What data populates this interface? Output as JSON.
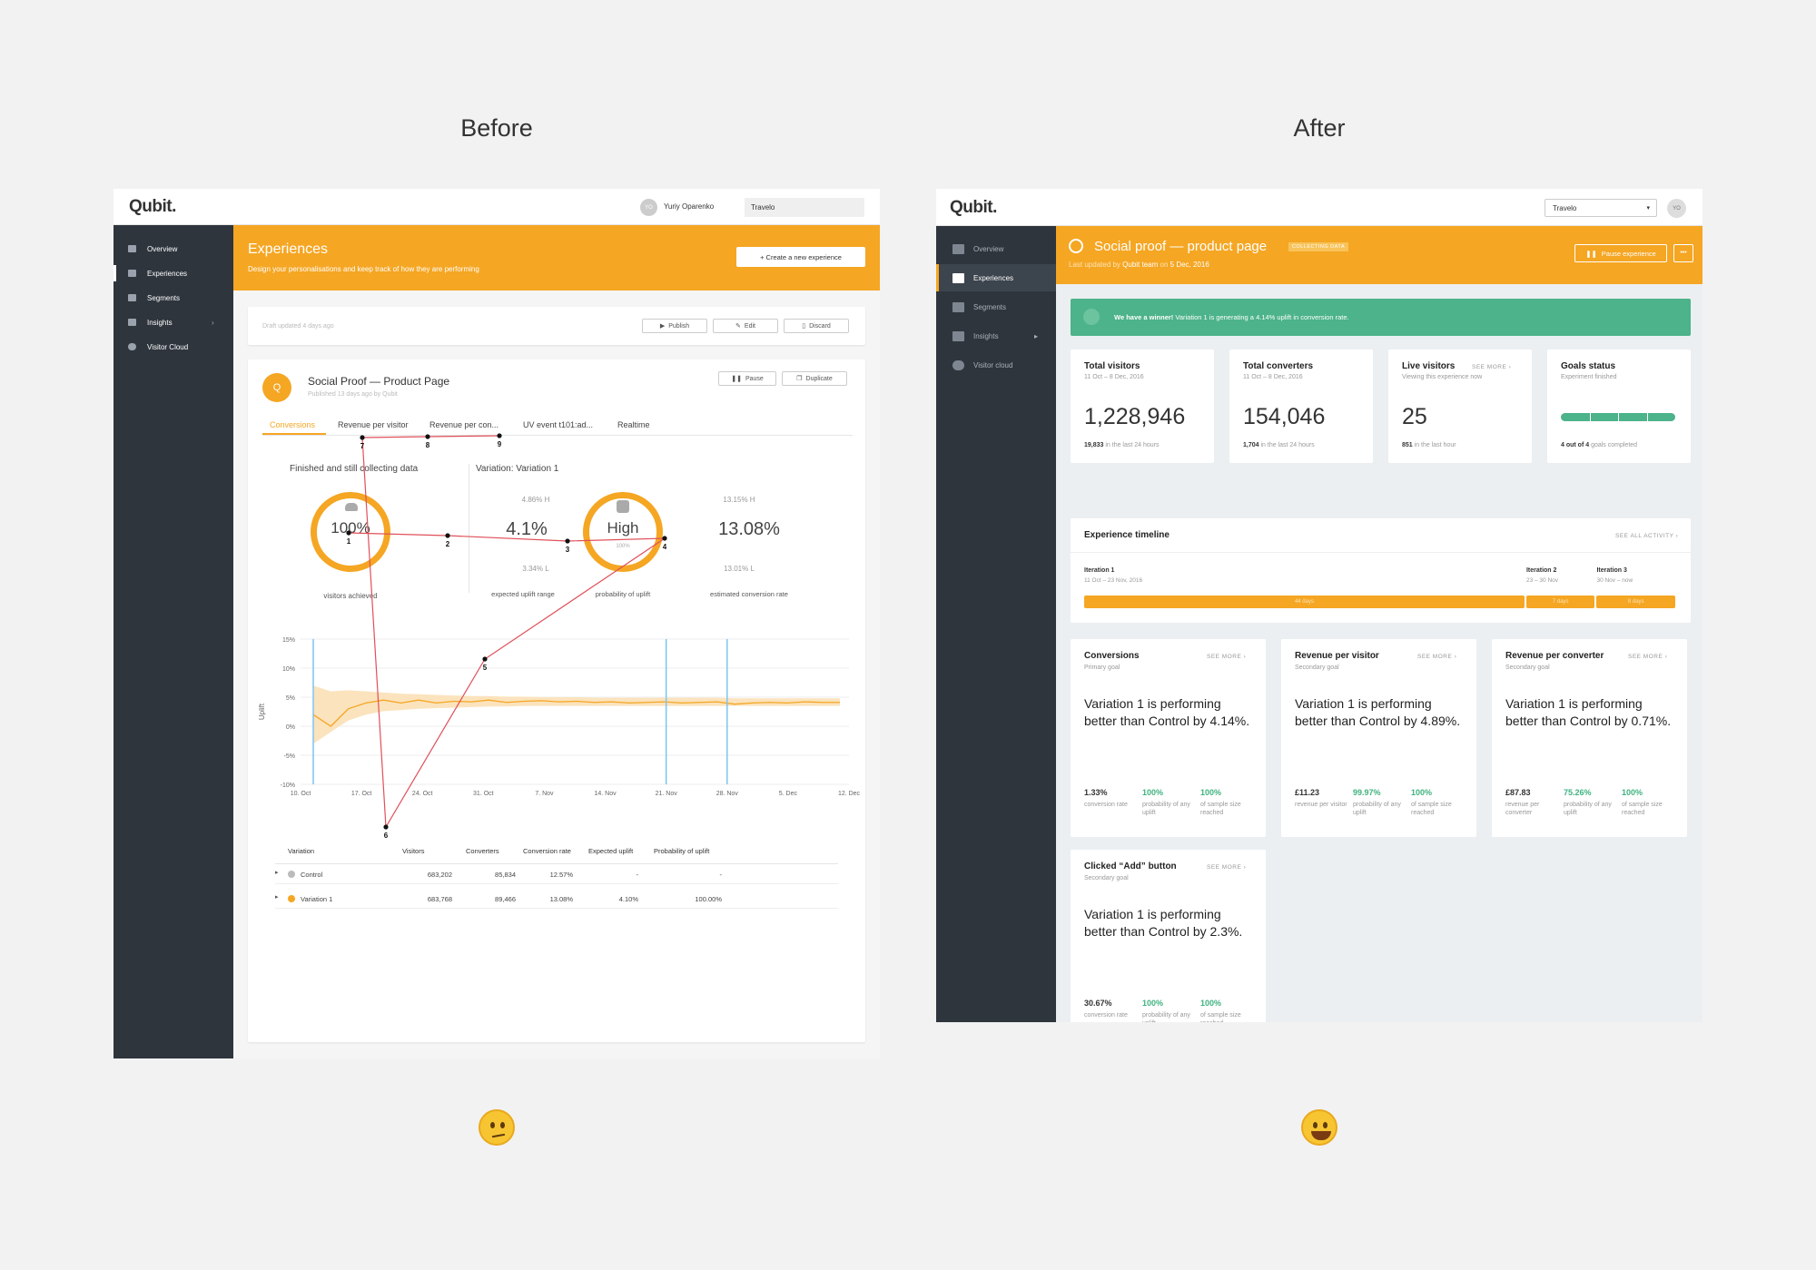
{
  "labels": {
    "before": "Before",
    "after": "After"
  },
  "before": {
    "logo": "Qubit.",
    "user_initials": "YO",
    "user_name": "Yuriy Oparenko",
    "account": "Travelo",
    "nav": [
      "Overview",
      "Experiences",
      "Segments",
      "Insights",
      "Visitor Cloud"
    ],
    "header_title": "Experiences",
    "header_subtitle": "Design your personalisations and keep track of how they are performing",
    "create_button": "+ Create a new experience",
    "draft_text": "Draft updated 4 days ago",
    "draft_buttons": [
      "Publish",
      "Edit",
      "Discard"
    ],
    "exp_icon": "Q",
    "exp_title": "Social Proof — Product Page",
    "exp_sub": "Published 13 days ago by Qubit",
    "exp_buttons": [
      "Pause",
      "Duplicate"
    ],
    "tabs": [
      "Conversions",
      "Revenue per visitor",
      "Revenue per con...",
      "UV event t101:ad...",
      "Realtime"
    ],
    "status_left": "Finished and still collecting data",
    "status_right": "Variation: Variation 1",
    "stats": {
      "visitors_value": "100%",
      "visitors_label": "visitors achieved",
      "uplift_value": "4.1%",
      "uplift_high": "4.86% H",
      "uplift_low": "3.34% L",
      "uplift_label": "expected uplift range",
      "prob_value": "High",
      "prob_sub": "100%",
      "prob_label": "probability of uplift",
      "conv_value": "13.08%",
      "conv_high": "13.15% H",
      "conv_low": "13.01% L",
      "conv_label": "estimated conversion rate"
    },
    "gaze_points": [
      "1",
      "2",
      "3",
      "4",
      "5",
      "6",
      "7",
      "8",
      "9"
    ],
    "table_headers": [
      "Variation",
      "Visitors",
      "Converters",
      "Conversion rate",
      "Expected uplift",
      "Probability of uplift"
    ],
    "table_rows": [
      {
        "name": "Control",
        "visitors": "683,202",
        "converters": "85,834",
        "rate": "12.57%",
        "uplift": "-",
        "prob": "-",
        "color": "#bbbbbb"
      },
      {
        "name": "Variation 1",
        "visitors": "683,768",
        "converters": "89,466",
        "rate": "13.08%",
        "uplift": "4.10%",
        "prob": "100.00%",
        "color": "#f5a623"
      }
    ]
  },
  "chart_data": {
    "type": "area",
    "ylabel": "Uplift",
    "y_ticks": [
      "15%",
      "10%",
      "5%",
      "0%",
      "-5%",
      "-10%"
    ],
    "x_ticks": [
      "10. Oct",
      "17. Oct",
      "24. Oct",
      "31. Oct",
      "7. Nov",
      "14. Nov",
      "21. Nov",
      "28. Nov",
      "5. Dec",
      "12. Dec"
    ],
    "ylim": [
      -10,
      15
    ],
    "series": [
      {
        "values": [
          2,
          0,
          3,
          4,
          4.5,
          4,
          4.5,
          4,
          4.3,
          4.2,
          4.5,
          4.1,
          4.3,
          4.4,
          4.2,
          4.3,
          4.1,
          4.2,
          4,
          4.1,
          4.2,
          4,
          4.1,
          4.2,
          3.8,
          4,
          4.1,
          4,
          4.2,
          4.1,
          4.1
        ]
      }
    ],
    "band_upper": [
      7,
      6,
      6.2,
      6,
      5.8,
      5.6,
      5.5,
      5.4,
      5.3,
      5.2,
      5.2,
      5.1,
      5.1,
      5,
      5,
      5,
      4.9,
      4.9,
      4.9,
      4.9,
      4.9,
      4.9,
      4.9,
      4.9,
      4.8,
      4.8,
      4.8,
      4.8,
      4.8,
      4.8,
      4.8
    ],
    "band_lower": [
      -3,
      -1,
      1,
      2,
      2.6,
      2.8,
      3,
      3.1,
      3.2,
      3.3,
      3.4,
      3.4,
      3.5,
      3.5,
      3.5,
      3.5,
      3.5,
      3.5,
      3.5,
      3.5,
      3.5,
      3.5,
      3.5,
      3.5,
      3.5,
      3.5,
      3.5,
      3.5,
      3.5,
      3.5,
      3.5
    ],
    "markers": [
      "10. Oct",
      "21. Nov",
      "28. Nov"
    ]
  },
  "after": {
    "logo": "Qubit.",
    "account": "Travelo",
    "user_initials": "YO",
    "nav": [
      "Overview",
      "Experiences",
      "Segments",
      "Insights",
      "Visitor cloud"
    ],
    "title": "Social proof — product page",
    "status_badge": "COLLECTING DATA",
    "updated_prefix": "Last updated by ",
    "updated_by": "Qubit team",
    "updated_mid": " on ",
    "updated_date": "5 Dec, 2016",
    "pause_button": "Pause experience",
    "more_button": "•••",
    "banner_bold": "We have a winner!",
    "banner_text": " Variation 1 is generating a 4.14% uplift in conversion rate.",
    "kpis": [
      {
        "title": "Total visitors",
        "sub": "11 Oct – 8 Dec, 2016",
        "value": "1,228,946",
        "foot_bold": "19,833",
        "foot": " in the last 24 hours",
        "see": ""
      },
      {
        "title": "Total converters",
        "sub": "11 Oct – 8 Dec, 2016",
        "value": "154,046",
        "foot_bold": "1,704",
        "foot": " in the last 24 hours",
        "see": ""
      },
      {
        "title": "Live visitors",
        "sub": "Viewing this experience now",
        "value": "25",
        "foot_bold": "851",
        "foot": " in the last hour",
        "see": "SEE MORE ›"
      },
      {
        "title": "Goals status",
        "sub": "Experiment finished",
        "value": "",
        "foot_bold": "4 out of 4",
        "foot": " goals completed",
        "see": ""
      }
    ],
    "goals_progress": 1.0,
    "timeline": {
      "title": "Experience timeline",
      "see": "SEE ALL ACTIVITY ›",
      "iterations": [
        {
          "name": "Iteration 1",
          "dates": "11 Oct – 23 Nov, 2016",
          "bar": "44 days",
          "days": 44
        },
        {
          "name": "Iteration 2",
          "dates": "23 – 30 Nov",
          "bar": "7 days",
          "days": 7
        },
        {
          "name": "Iteration 3",
          "dates": "30 Nov – now",
          "bar": "8 days",
          "days": 8
        }
      ]
    },
    "goals": [
      {
        "title": "Conversions",
        "type": "Primary goal",
        "headline": "Variation 1 is performing better than Control by 4.14%.",
        "m1": "1.33%",
        "l1": "conversion rate",
        "m2": "100%",
        "l2": "probability of any uplift",
        "m3": "100%",
        "l3": "of sample size reached",
        "see": "SEE MORE ›"
      },
      {
        "title": "Revenue per visitor",
        "type": "Secondary goal",
        "headline": "Variation 1 is performing better than Control by 4.89%.",
        "m1": "£11.23",
        "l1": "revenue per visitor",
        "m2": "99.97%",
        "l2": "probability of any uplift",
        "m3": "100%",
        "l3": "of sample size reached",
        "see": "SEE MORE ›"
      },
      {
        "title": "Revenue per converter",
        "type": "Secondary goal",
        "headline": "Variation 1 is performing better than Control by 0.71%.",
        "m1": "£87.83",
        "l1": "revenue per converter",
        "m2": "75.26%",
        "l2": "probability of any uplift",
        "m3": "100%",
        "l3": "of sample size reached",
        "see": "SEE MORE ›"
      },
      {
        "title": "Clicked “Add” button",
        "type": "Secondary goal",
        "headline": "Variation 1 is performing better than Control by 2.3%.",
        "m1": "30.67%",
        "l1": "conversion rate",
        "m2": "100%",
        "l2": "probability of any uplift",
        "m3": "100%",
        "l3": "of sample size reached",
        "see": "SEE MORE ›"
      }
    ]
  },
  "colors": {
    "accent": "#f5a623",
    "sidebar": "#2e353d",
    "success": "#4cb38a",
    "gaze": "#e0505a"
  }
}
